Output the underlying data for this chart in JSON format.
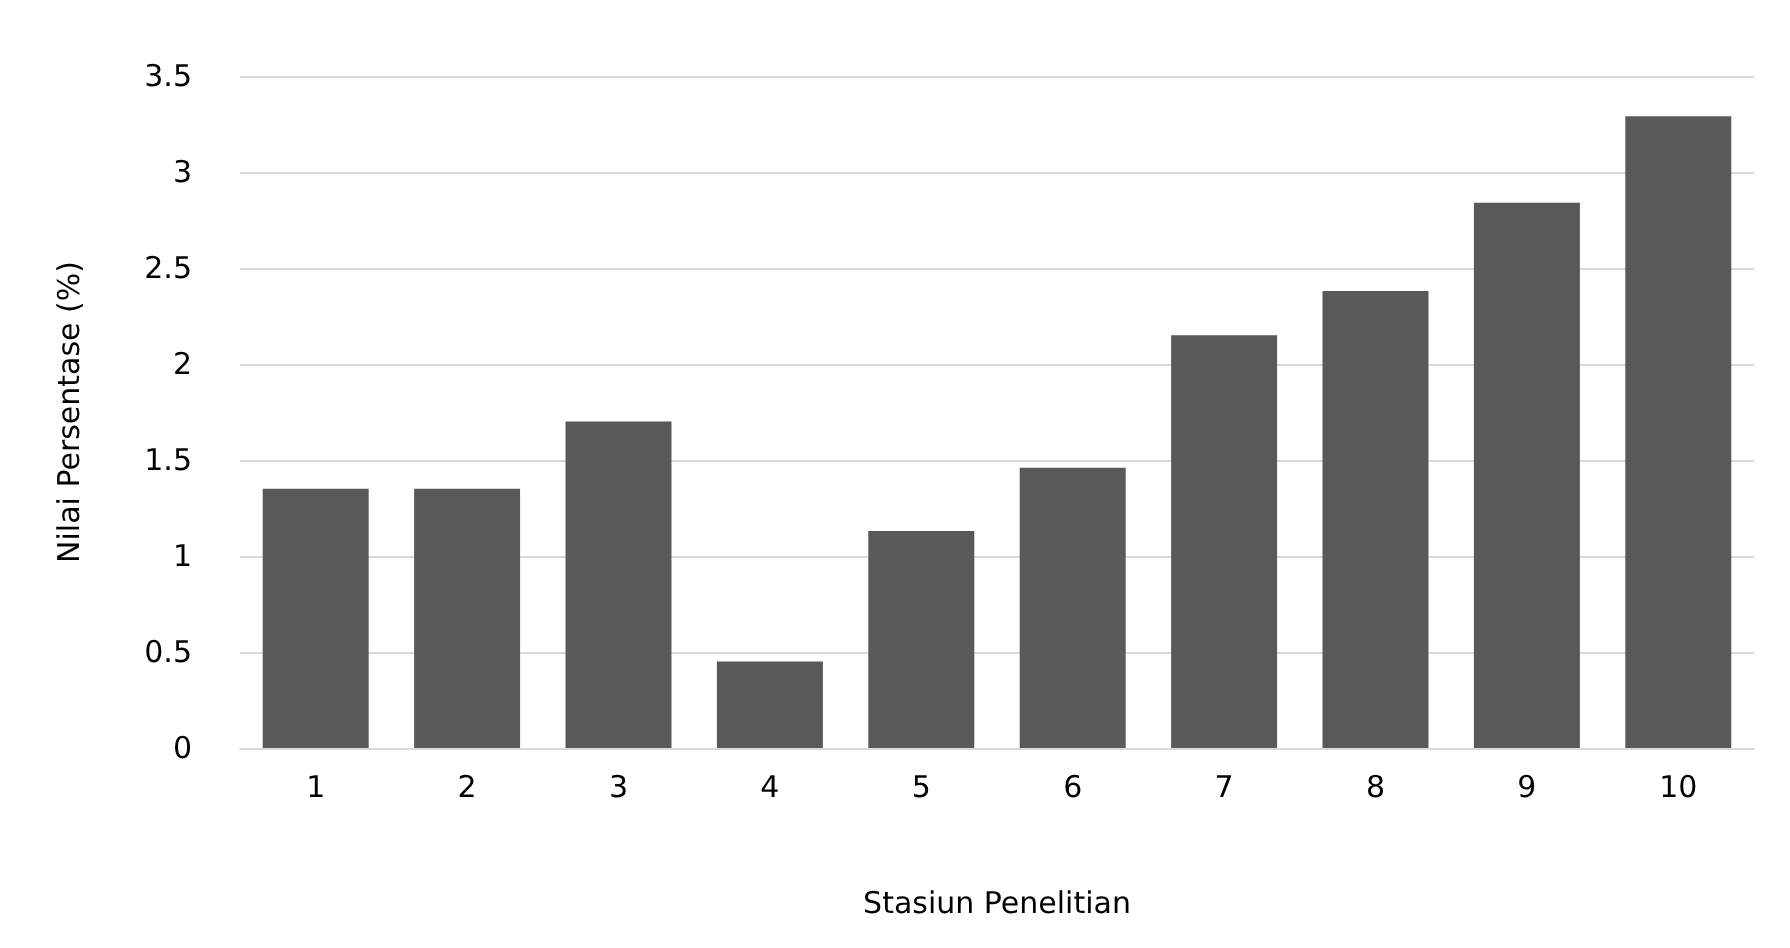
{
  "chart_data": {
    "type": "bar",
    "xlabel": "Stasiun Penelitian",
    "ylabel": "Nilai Persentase (%)",
    "categories": [
      "1",
      "2",
      "3",
      "4",
      "5",
      "6",
      "7",
      "8",
      "9",
      "10"
    ],
    "values": [
      1.35,
      1.35,
      1.7,
      0.45,
      1.13,
      1.46,
      2.15,
      2.38,
      2.84,
      3.29
    ],
    "color": "#595959",
    "ylim": [
      0,
      3.5
    ],
    "yticks": [
      0,
      0.5,
      1,
      1.5,
      2,
      2.5,
      3,
      3.5
    ],
    "grid": "y"
  }
}
